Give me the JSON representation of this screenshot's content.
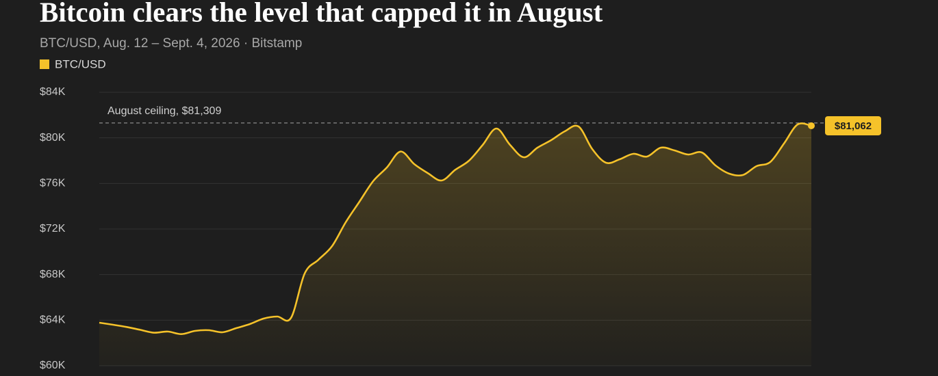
{
  "chart_data": {
    "type": "line",
    "title": "Bitcoin clears the level that capped it in August",
    "subtitle": "BTC/USD, Aug. 12 – Sept. 4, 2026 · Bitstamp",
    "series": [
      {
        "name": "BTC/USD",
        "color": "#f5c22a",
        "values": [
          63780,
          63600,
          63400,
          63150,
          62900,
          63000,
          62780,
          63060,
          63120,
          62940,
          63300,
          63660,
          64140,
          64320,
          64200,
          68100,
          69300,
          70500,
          72600,
          74400,
          76200,
          77400,
          78800,
          77700,
          76900,
          76260,
          77200,
          78000,
          79380,
          80820,
          79380,
          78300,
          79140,
          79800,
          80580,
          81000,
          79020,
          77820,
          78120,
          78600,
          78360,
          79140,
          78900,
          78540,
          78720,
          77580,
          76860,
          76740,
          77520,
          77880,
          79500,
          81180,
          81062
        ],
        "end_label": "$81,062"
      }
    ],
    "ceiling": {
      "value": 81309,
      "label": "August ceiling, $81,309"
    },
    "ylim": [
      60000,
      84000
    ],
    "yticks": [
      {
        "value": 60000,
        "label": "$60K"
      },
      {
        "value": 64000,
        "label": "$64K"
      },
      {
        "value": 68000,
        "label": "$68K"
      },
      {
        "value": 72000,
        "label": "$72K"
      },
      {
        "value": 76000,
        "label": "$76K"
      },
      {
        "value": 80000,
        "label": "$80K"
      },
      {
        "value": 84000,
        "label": "$84K"
      }
    ],
    "grid": true
  }
}
